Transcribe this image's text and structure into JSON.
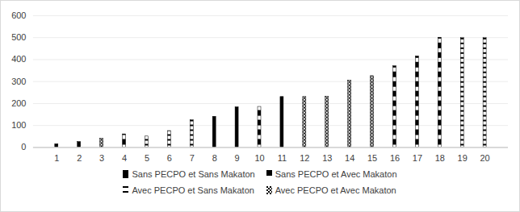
{
  "chart_data": {
    "type": "bar",
    "categories": [
      1,
      2,
      3,
      4,
      5,
      6,
      7,
      8,
      9,
      10,
      11,
      12,
      13,
      14,
      15,
      16,
      17,
      18,
      19,
      20
    ],
    "series": [
      {
        "name": "Sans PECPO et Sans Makaton",
        "color": "#000000",
        "values": [
          15,
          25,
          null,
          null,
          null,
          null,
          null,
          140,
          183,
          null,
          230,
          null,
          null,
          null,
          null,
          null,
          null,
          null,
          null,
          null
        ]
      },
      {
        "name": "Sans PECPO et Avec Makaton",
        "color": "#000000",
        "values": [
          null,
          null,
          null,
          60,
          null,
          null,
          null,
          null,
          null,
          185,
          null,
          null,
          null,
          null,
          null,
          370,
          415,
          500,
          null,
          null
        ]
      },
      {
        "name": "Avec PECPO et Sans Makaton",
        "color": "#000000",
        "values": [
          null,
          null,
          null,
          null,
          50,
          75,
          125,
          null,
          null,
          null,
          null,
          null,
          null,
          null,
          null,
          null,
          null,
          null,
          500,
          500
        ]
      },
      {
        "name": "Avec PECPO et Avec Makaton",
        "color": "#000000",
        "values": [
          null,
          null,
          40,
          null,
          null,
          null,
          null,
          null,
          null,
          null,
          null,
          230,
          232,
          305,
          325,
          null,
          null,
          null,
          null,
          null
        ]
      }
    ],
    "ylim": [
      0,
      600
    ],
    "yticks": [
      0,
      100,
      200,
      300,
      400,
      500,
      600
    ],
    "grid": true,
    "legend": "bottom"
  }
}
